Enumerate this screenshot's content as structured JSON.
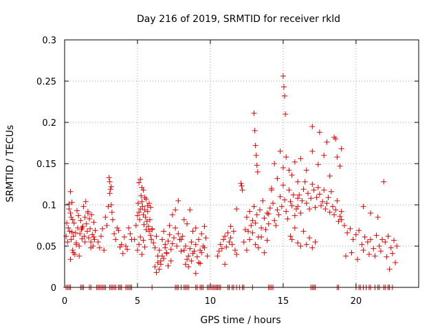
{
  "chart_data": {
    "type": "scatter",
    "title": "Day 216 of 2019, SRMTID for receiver rkld",
    "xlabel": "GPS time / hours",
    "ylabel": "SRMTID / TECUs",
    "xlim": [
      0,
      24.3
    ],
    "ylim": [
      0,
      0.3
    ],
    "xticks": [
      0,
      5,
      10,
      15,
      20
    ],
    "xtick_labels": [
      "0",
      "5",
      "10",
      "15",
      "20"
    ],
    "yticks": [
      0,
      0.05,
      0.1,
      0.15,
      0.2,
      0.25,
      0.3
    ],
    "ytick_labels": [
      "0",
      "0.05",
      "0.1",
      "0.15",
      "0.2",
      "0.25",
      "0.3"
    ],
    "grid": true,
    "marker": "plus",
    "series": [
      {
        "name": "SRMTID",
        "color": "#e00000",
        "x": [
          0.1,
          0.15,
          0.2,
          0.25,
          0.3,
          0.4,
          0.45,
          0.5,
          0.55,
          0.3,
          0.35,
          0.4,
          0.45,
          0.5,
          0.55,
          0.6,
          0.65,
          0.7,
          0.75,
          0.8,
          0.85,
          0.9,
          0.95,
          1.0,
          1.05,
          1.1,
          1.15,
          1.2,
          1.25,
          1.3,
          1.35,
          1.4,
          1.45,
          1.5,
          1.55,
          1.6,
          1.65,
          1.7,
          1.75,
          1.8,
          1.85,
          1.9,
          1.95,
          2.0,
          2.05,
          2.1,
          0.4,
          0.6,
          0.8,
          1.0,
          1.2,
          1.4,
          1.6,
          1.8,
          2.0,
          2.3,
          2.4,
          2.5,
          2.6,
          2.7,
          2.8,
          2.9,
          3.0,
          3.1,
          3.2,
          3.3,
          3.4,
          3.5,
          3.6,
          3.7,
          3.8,
          3.9,
          4.0,
          4.1,
          4.2,
          4.3,
          4.4,
          4.5,
          4.6,
          3.05,
          3.1,
          3.15,
          3.2,
          3.25,
          4.8,
          4.9,
          5.0,
          5.05,
          5.1,
          5.15,
          5.2,
          5.25,
          5.3,
          5.35,
          5.4,
          5.45,
          5.5,
          5.55,
          5.6,
          5.65,
          5.7,
          5.75,
          5.8,
          5.85,
          5.9,
          5.95,
          6.0,
          5.1,
          5.2,
          5.3,
          5.4,
          5.5,
          5.6,
          5.7,
          5.8,
          5.9,
          5.0,
          5.1,
          5.2,
          5.3,
          5.4,
          5.5,
          6.0,
          6.1,
          6.2,
          6.3,
          6.4,
          6.5,
          6.6,
          6.7,
          6.8,
          6.9,
          7.0,
          7.1,
          7.2,
          7.3,
          7.4,
          7.5,
          7.6,
          7.7,
          7.8,
          7.9,
          8.0,
          6.2,
          6.4,
          6.6,
          6.8,
          7.0,
          7.2,
          7.4,
          7.6,
          7.8,
          6.3,
          6.5,
          6.7,
          6.9,
          7.1,
          7.3,
          8.0,
          8.1,
          8.2,
          8.3,
          8.4,
          8.5,
          8.6,
          8.7,
          8.8,
          8.9,
          9.0,
          9.1,
          9.2,
          9.3,
          9.4,
          9.5,
          9.6,
          9.7,
          9.8,
          8.2,
          8.4,
          8.6,
          8.8,
          9.0,
          9.2,
          9.4,
          9.6,
          8.3,
          8.5,
          8.7,
          9.0,
          9.3,
          10.5,
          10.6,
          10.7,
          10.8,
          10.9,
          11.0,
          11.1,
          11.2,
          11.3,
          11.4,
          11.5,
          11.6,
          11.7,
          11.8,
          11.0,
          11.4,
          11.8,
          12.1,
          12.15,
          12.2,
          12.3,
          12.4,
          12.5,
          12.6,
          12.7,
          12.8,
          12.9,
          13.0,
          13.1,
          13.2,
          13.3,
          13.4,
          13.5,
          13.6,
          13.7,
          13.8,
          13.9,
          14.0,
          12.5,
          12.7,
          12.9,
          13.1,
          13.3,
          13.5,
          13.7,
          13.9,
          13.0,
          13.05,
          13.1,
          13.15,
          13.2,
          13.25,
          14.0,
          14.1,
          14.2,
          14.3,
          14.4,
          14.5,
          14.6,
          14.7,
          14.8,
          14.9,
          15.0,
          15.1,
          15.2,
          15.3,
          15.4,
          15.5,
          15.6,
          15.7,
          15.8,
          15.9,
          16.0,
          14.2,
          14.4,
          14.6,
          14.8,
          15.0,
          15.2,
          15.4,
          15.6,
          15.8,
          16.0,
          15.0,
          15.05,
          15.1,
          15.15,
          15.5,
          15.6,
          15.8,
          16.0,
          16.2,
          16.4,
          16.6,
          16.8,
          17.0,
          17.2,
          16.0,
          16.1,
          16.2,
          16.3,
          16.4,
          16.5,
          16.6,
          16.7,
          16.8,
          16.9,
          17.0,
          17.1,
          17.2,
          17.3,
          17.4,
          17.5,
          17.6,
          17.7,
          17.8,
          17.9,
          18.0,
          18.1,
          18.2,
          18.3,
          18.4,
          18.5,
          18.6,
          18.7,
          18.8,
          18.9,
          19.0,
          16.2,
          16.6,
          17.0,
          17.4,
          17.8,
          18.2,
          18.6,
          19.0,
          17.0,
          17.5,
          18.0,
          18.5,
          18.7,
          18.9,
          19.0,
          19.2,
          19.4,
          19.6,
          19.8,
          20.0,
          20.2,
          20.4,
          20.6,
          20.8,
          21.0,
          21.2,
          21.4,
          21.6,
          21.8,
          22.0,
          22.2,
          22.4,
          22.6,
          22.8,
          19.3,
          19.7,
          20.1,
          20.5,
          20.9,
          21.3,
          21.7,
          22.1,
          22.5,
          20.5,
          21.0,
          21.5,
          21.9,
          22.3,
          22.7,
          0.1,
          0.2,
          0.3,
          0.4,
          1.1,
          1.2,
          1.3,
          1.7,
          1.8,
          2.2,
          2.3,
          2.4,
          2.5,
          2.6,
          2.7,
          2.8,
          3.1,
          3.2,
          3.3,
          3.4,
          3.5,
          3.7,
          3.8,
          3.9,
          4.2,
          4.3,
          4.4,
          4.5,
          4.6,
          6.0,
          7.6,
          7.7,
          7.8,
          8.0,
          8.2,
          8.3,
          8.4,
          8.5,
          9.0,
          9.1,
          9.3,
          9.4,
          9.5,
          9.8,
          9.9,
          10.0,
          10.1,
          10.2,
          10.3,
          10.4,
          10.5,
          10.6,
          10.7,
          11.2,
          11.3,
          11.5,
          11.6,
          11.8,
          12.0,
          12.2,
          12.3,
          12.9,
          14.0,
          14.1,
          14.2,
          14.3,
          16.9,
          17.0,
          17.1,
          17.2,
          18.7,
          18.8,
          20.0,
          20.2,
          20.3,
          20.5,
          20.7,
          20.9,
          21.0,
          21.3,
          21.5,
          21.6,
          21.9,
          22.0,
          22.2,
          22.3,
          22.5
        ],
        "y": [
          0.062,
          0.078,
          0.055,
          0.072,
          0.101,
          0.116,
          0.085,
          0.067,
          0.045,
          0.095,
          0.068,
          0.09,
          0.058,
          0.103,
          0.082,
          0.062,
          0.078,
          0.04,
          0.066,
          0.054,
          0.093,
          0.072,
          0.087,
          0.05,
          0.065,
          0.081,
          0.07,
          0.059,
          0.074,
          0.098,
          0.062,
          0.085,
          0.104,
          0.077,
          0.068,
          0.092,
          0.06,
          0.083,
          0.071,
          0.055,
          0.088,
          0.064,
          0.05,
          0.079,
          0.058,
          0.069,
          0.034,
          0.042,
          0.052,
          0.038,
          0.072,
          0.055,
          0.09,
          0.048,
          0.061,
          0.055,
          0.048,
          0.062,
          0.071,
          0.045,
          0.085,
          0.075,
          0.098,
          0.114,
          0.122,
          0.082,
          0.065,
          0.058,
          0.072,
          0.069,
          0.049,
          0.052,
          0.041,
          0.061,
          0.05,
          0.046,
          0.072,
          0.065,
          0.058,
          0.133,
          0.128,
          0.119,
          0.1,
          0.091,
          0.058,
          0.075,
          0.087,
          0.102,
          0.091,
          0.082,
          0.095,
          0.111,
          0.104,
          0.098,
          0.088,
          0.076,
          0.094,
          0.085,
          0.07,
          0.08,
          0.092,
          0.074,
          0.068,
          0.082,
          0.063,
          0.058,
          0.071,
          0.127,
          0.131,
          0.121,
          0.118,
          0.109,
          0.107,
          0.099,
          0.102,
          0.097,
          0.045,
          0.052,
          0.061,
          0.04,
          0.057,
          0.049,
          0.07,
          0.054,
          0.048,
          0.062,
          0.038,
          0.045,
          0.032,
          0.058,
          0.068,
          0.052,
          0.041,
          0.056,
          0.064,
          0.046,
          0.053,
          0.06,
          0.072,
          0.05,
          0.065,
          0.058,
          0.044,
          0.025,
          0.03,
          0.028,
          0.035,
          0.042,
          0.075,
          0.088,
          0.094,
          0.105,
          0.018,
          0.022,
          0.038,
          0.048,
          0.026,
          0.032,
          0.058,
          0.062,
          0.045,
          0.05,
          0.034,
          0.038,
          0.047,
          0.055,
          0.041,
          0.044,
          0.052,
          0.037,
          0.03,
          0.045,
          0.042,
          0.05,
          0.048,
          0.06,
          0.038,
          0.082,
          0.077,
          0.094,
          0.068,
          0.072,
          0.058,
          0.065,
          0.074,
          0.028,
          0.025,
          0.032,
          0.017,
          0.029,
          0.038,
          0.044,
          0.052,
          0.047,
          0.058,
          0.062,
          0.049,
          0.066,
          0.055,
          0.06,
          0.052,
          0.068,
          0.045,
          0.04,
          0.028,
          0.074,
          0.095,
          0.126,
          0.123,
          0.118,
          0.055,
          0.07,
          0.085,
          0.068,
          0.092,
          0.075,
          0.081,
          0.098,
          0.078,
          0.088,
          0.061,
          0.094,
          0.072,
          0.105,
          0.084,
          0.07,
          0.09,
          0.077,
          0.045,
          0.058,
          0.066,
          0.052,
          0.048,
          0.061,
          0.042,
          0.057,
          0.211,
          0.19,
          0.172,
          0.16,
          0.148,
          0.14,
          0.089,
          0.096,
          0.118,
          0.102,
          0.081,
          0.075,
          0.094,
          0.088,
          0.11,
          0.098,
          0.124,
          0.106,
          0.092,
          0.083,
          0.118,
          0.104,
          0.099,
          0.112,
          0.087,
          0.095,
          0.108,
          0.12,
          0.15,
          0.132,
          0.165,
          0.145,
          0.158,
          0.142,
          0.136,
          0.152,
          0.128,
          0.256,
          0.243,
          0.232,
          0.21,
          0.062,
          0.058,
          0.072,
          0.054,
          0.05,
          0.068,
          0.052,
          0.06,
          0.048,
          0.055,
          0.098,
          0.112,
          0.09,
          0.105,
          0.119,
          0.128,
          0.102,
          0.114,
          0.095,
          0.108,
          0.125,
          0.118,
          0.097,
          0.109,
          0.121,
          0.113,
          0.099,
          0.104,
          0.118,
          0.095,
          0.102,
          0.109,
          0.091,
          0.116,
          0.098,
          0.088,
          0.094,
          0.105,
          0.08,
          0.086,
          0.092,
          0.156,
          0.142,
          0.165,
          0.149,
          0.16,
          0.135,
          0.18,
          0.168,
          0.195,
          0.188,
          0.176,
          0.182,
          0.158,
          0.147,
          0.082,
          0.075,
          0.066,
          0.071,
          0.058,
          0.064,
          0.069,
          0.052,
          0.061,
          0.055,
          0.058,
          0.047,
          0.063,
          0.05,
          0.058,
          0.055,
          0.062,
          0.048,
          0.057,
          0.05,
          0.038,
          0.042,
          0.034,
          0.045,
          0.04,
          0.038,
          0.044,
          0.037,
          0.041,
          0.098,
          0.09,
          0.085,
          0.128,
          0.022,
          0.03,
          0,
          0,
          0,
          0,
          0,
          0,
          0,
          0,
          0,
          0,
          0,
          0,
          0,
          0,
          0,
          0,
          0,
          0,
          0,
          0,
          0,
          0,
          0,
          0,
          0,
          0,
          0,
          0,
          0,
          0,
          0,
          0,
          0,
          0,
          0,
          0,
          0,
          0,
          0,
          0,
          0,
          0,
          0,
          0,
          0,
          0,
          0,
          0,
          0,
          0,
          0,
          0,
          0,
          0,
          0,
          0,
          0,
          0,
          0,
          0,
          0,
          0,
          0,
          0,
          0,
          0,
          0,
          0,
          0,
          0,
          0,
          0,
          0,
          0,
          0,
          0,
          0,
          0,
          0,
          0,
          0,
          0,
          0,
          0,
          0,
          0,
          0
        ]
      }
    ]
  }
}
